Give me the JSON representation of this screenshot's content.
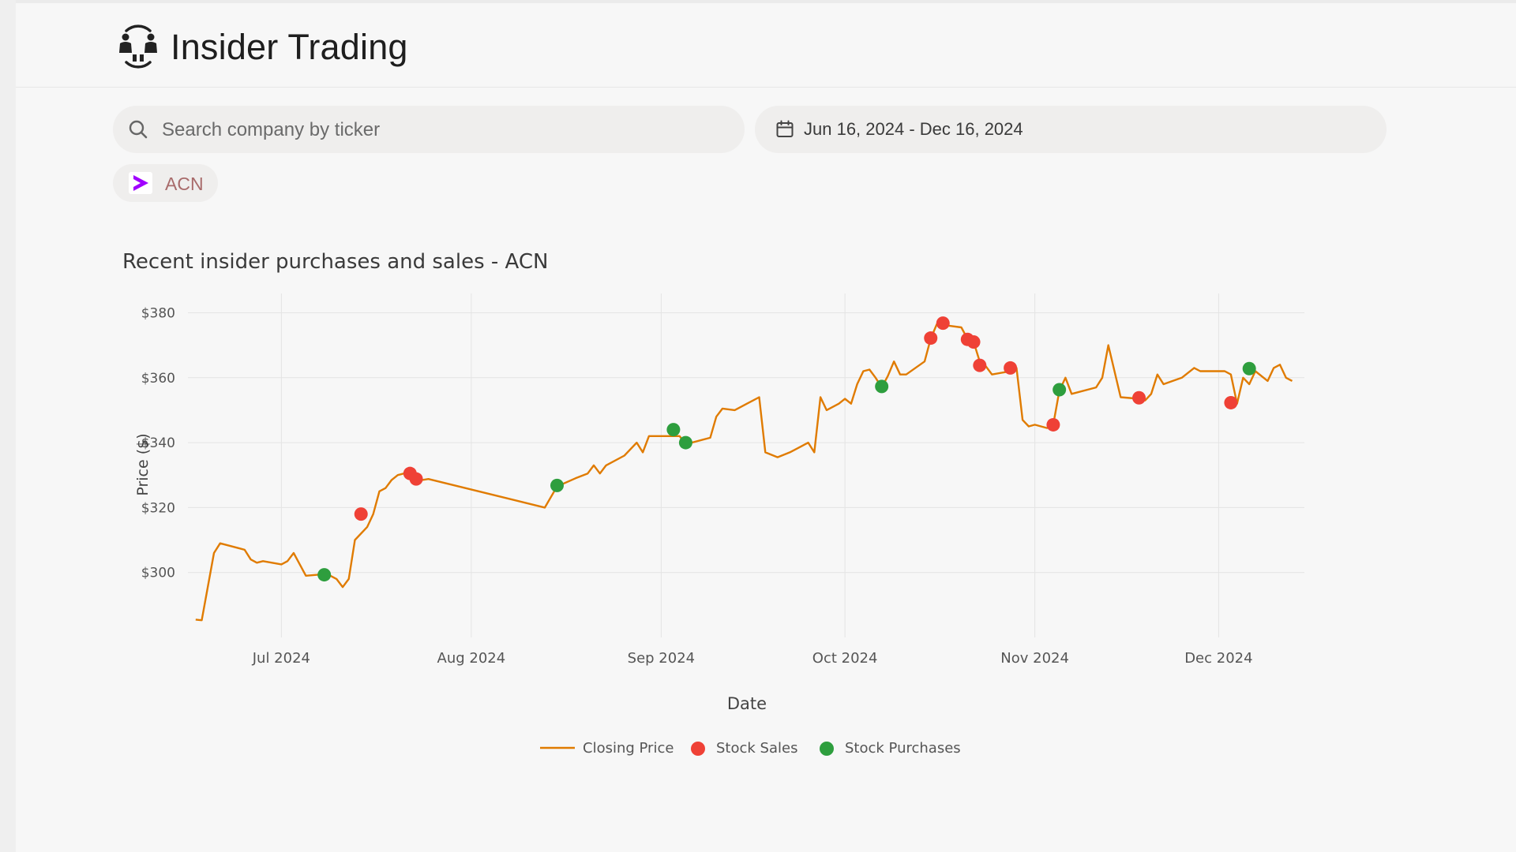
{
  "app": {
    "title": "Insider Trading",
    "logo_icon": "people-exchange-icon"
  },
  "search": {
    "placeholder": "Search company by ticker",
    "value": "",
    "icon": "search-icon"
  },
  "date_range": {
    "label": "Jun 16, 2024 - Dec 16, 2024",
    "icon": "calendar-icon"
  },
  "ticker_chip": {
    "label": "ACN",
    "icon": "accenture-logo-icon",
    "brand_color": "#a100ff"
  },
  "chart_title": "Recent insider purchases and sales - ACN",
  "chart_data": {
    "type": "line",
    "title": "Recent insider purchases and sales - ACN",
    "xlabel": "Date",
    "ylabel": "Price ($)",
    "x_range": [
      "2024-06-16",
      "2024-12-15"
    ],
    "ylim": [
      280,
      384
    ],
    "x_ticks": [
      {
        "date": "2024-07-01",
        "label": "Jul 2024"
      },
      {
        "date": "2024-08-01",
        "label": "Aug 2024"
      },
      {
        "date": "2024-09-01",
        "label": "Sep 2024"
      },
      {
        "date": "2024-10-01",
        "label": "Oct 2024"
      },
      {
        "date": "2024-11-01",
        "label": "Nov 2024"
      },
      {
        "date": "2024-12-01",
        "label": "Dec 2024"
      }
    ],
    "y_ticks": [
      {
        "value": 300,
        "label": "$300"
      },
      {
        "value": 320,
        "label": "$320"
      },
      {
        "value": 340,
        "label": "$340"
      },
      {
        "value": 360,
        "label": "$360"
      },
      {
        "value": 380,
        "label": "$380"
      }
    ],
    "grid": true,
    "legend_position": "bottom-center",
    "series": [
      {
        "name": "Closing Price",
        "type": "line",
        "color": "#e07b00",
        "points": [
          [
            "2024-06-17",
            285.5
          ],
          [
            "2024-06-18",
            285.3
          ],
          [
            "2024-06-20",
            306
          ],
          [
            "2024-06-21",
            309
          ],
          [
            "2024-06-24",
            307.5
          ],
          [
            "2024-06-25",
            307
          ],
          [
            "2024-06-26",
            304
          ],
          [
            "2024-06-27",
            303
          ],
          [
            "2024-06-28",
            303.5
          ],
          [
            "2024-07-01",
            302.5
          ],
          [
            "2024-07-02",
            303.5
          ],
          [
            "2024-07-03",
            306
          ],
          [
            "2024-07-05",
            299
          ],
          [
            "2024-07-08",
            299.5
          ],
          [
            "2024-07-09",
            299
          ],
          [
            "2024-07-10",
            298
          ],
          [
            "2024-07-11",
            295.5
          ],
          [
            "2024-07-12",
            298
          ],
          [
            "2024-07-13",
            310
          ],
          [
            "2024-07-15",
            314
          ],
          [
            "2024-07-16",
            318
          ],
          [
            "2024-07-17",
            325
          ],
          [
            "2024-07-18",
            326
          ],
          [
            "2024-07-19",
            328.5
          ],
          [
            "2024-07-20",
            330
          ],
          [
            "2024-07-22",
            331
          ],
          [
            "2024-07-23",
            330
          ],
          [
            "2024-07-24",
            328.5
          ],
          [
            "2024-07-25",
            328.8
          ],
          [
            "2024-08-13",
            320
          ],
          [
            "2024-08-15",
            326.5
          ],
          [
            "2024-08-18",
            329
          ],
          [
            "2024-08-20",
            330.5
          ],
          [
            "2024-08-21",
            333
          ],
          [
            "2024-08-22",
            330.5
          ],
          [
            "2024-08-23",
            333
          ],
          [
            "2024-08-26",
            336
          ],
          [
            "2024-08-28",
            340
          ],
          [
            "2024-08-29",
            337
          ],
          [
            "2024-08-30",
            342
          ],
          [
            "2024-09-04",
            342
          ],
          [
            "2024-09-05",
            339.5
          ],
          [
            "2024-09-09",
            341.5
          ],
          [
            "2024-09-10",
            348
          ],
          [
            "2024-09-11",
            350.5
          ],
          [
            "2024-09-13",
            350
          ],
          [
            "2024-09-15",
            352
          ],
          [
            "2024-09-17",
            354
          ],
          [
            "2024-09-18",
            337
          ],
          [
            "2024-09-20",
            335.5
          ],
          [
            "2024-09-22",
            337
          ],
          [
            "2024-09-25",
            340
          ],
          [
            "2024-09-26",
            337
          ],
          [
            "2024-09-27",
            354
          ],
          [
            "2024-09-28",
            350
          ],
          [
            "2024-09-30",
            352
          ],
          [
            "2024-10-01",
            353.5
          ],
          [
            "2024-10-02",
            352
          ],
          [
            "2024-10-03",
            358
          ],
          [
            "2024-10-04",
            362
          ],
          [
            "2024-10-05",
            362.5
          ],
          [
            "2024-10-06",
            360
          ],
          [
            "2024-10-07",
            357
          ],
          [
            "2024-10-08",
            360.5
          ],
          [
            "2024-10-09",
            365
          ],
          [
            "2024-10-10",
            361
          ],
          [
            "2024-10-11",
            361
          ],
          [
            "2024-10-14",
            365
          ],
          [
            "2024-10-15",
            372
          ],
          [
            "2024-10-16",
            376.5
          ],
          [
            "2024-10-17",
            377
          ],
          [
            "2024-10-18",
            376
          ],
          [
            "2024-10-20",
            375.5
          ],
          [
            "2024-10-21",
            372
          ],
          [
            "2024-10-22",
            371
          ],
          [
            "2024-10-23",
            365
          ],
          [
            "2024-10-24",
            363.5
          ],
          [
            "2024-10-25",
            361
          ],
          [
            "2024-10-28",
            362
          ],
          [
            "2024-10-29",
            363
          ],
          [
            "2024-10-30",
            347
          ],
          [
            "2024-10-31",
            345
          ],
          [
            "2024-11-01",
            345.5
          ],
          [
            "2024-11-03",
            344.5
          ],
          [
            "2024-11-04",
            345.5
          ],
          [
            "2024-11-05",
            356
          ],
          [
            "2024-11-06",
            360
          ],
          [
            "2024-11-07",
            355
          ],
          [
            "2024-11-11",
            357
          ],
          [
            "2024-11-12",
            360
          ],
          [
            "2024-11-13",
            370
          ],
          [
            "2024-11-15",
            354
          ],
          [
            "2024-11-18",
            353.5
          ],
          [
            "2024-11-19",
            353
          ],
          [
            "2024-11-20",
            355
          ],
          [
            "2024-11-21",
            361
          ],
          [
            "2024-11-22",
            358
          ],
          [
            "2024-11-25",
            360
          ],
          [
            "2024-11-27",
            363
          ],
          [
            "2024-11-28",
            362
          ],
          [
            "2024-12-02",
            362
          ],
          [
            "2024-12-03",
            361
          ],
          [
            "2024-12-04",
            352
          ],
          [
            "2024-12-05",
            360
          ],
          [
            "2024-12-06",
            358
          ],
          [
            "2024-12-07",
            362
          ],
          [
            "2024-12-09",
            359
          ],
          [
            "2024-12-10",
            363
          ],
          [
            "2024-12-11",
            364
          ],
          [
            "2024-12-12",
            360
          ],
          [
            "2024-12-13",
            359
          ]
        ]
      },
      {
        "name": "Stock Sales",
        "type": "scatter",
        "color": "#ef4136",
        "points": [
          [
            "2024-07-14",
            318
          ],
          [
            "2024-07-22",
            330.5
          ],
          [
            "2024-07-23",
            328.8
          ],
          [
            "2024-10-15",
            372.2
          ],
          [
            "2024-10-17",
            376.8
          ],
          [
            "2024-10-21",
            371.8
          ],
          [
            "2024-10-22",
            371
          ],
          [
            "2024-10-23",
            363.8
          ],
          [
            "2024-10-28",
            363
          ],
          [
            "2024-11-04",
            345.5
          ],
          [
            "2024-11-18",
            353.8
          ],
          [
            "2024-12-03",
            352.3
          ]
        ]
      },
      {
        "name": "Stock Purchases",
        "type": "scatter",
        "color": "#2e9e3e",
        "points": [
          [
            "2024-07-08",
            299.3
          ],
          [
            "2024-08-15",
            326.8
          ],
          [
            "2024-09-03",
            344
          ],
          [
            "2024-09-05",
            340
          ],
          [
            "2024-10-07",
            357.3
          ],
          [
            "2024-11-05",
            356.3
          ],
          [
            "2024-12-06",
            362.8
          ]
        ]
      }
    ]
  }
}
